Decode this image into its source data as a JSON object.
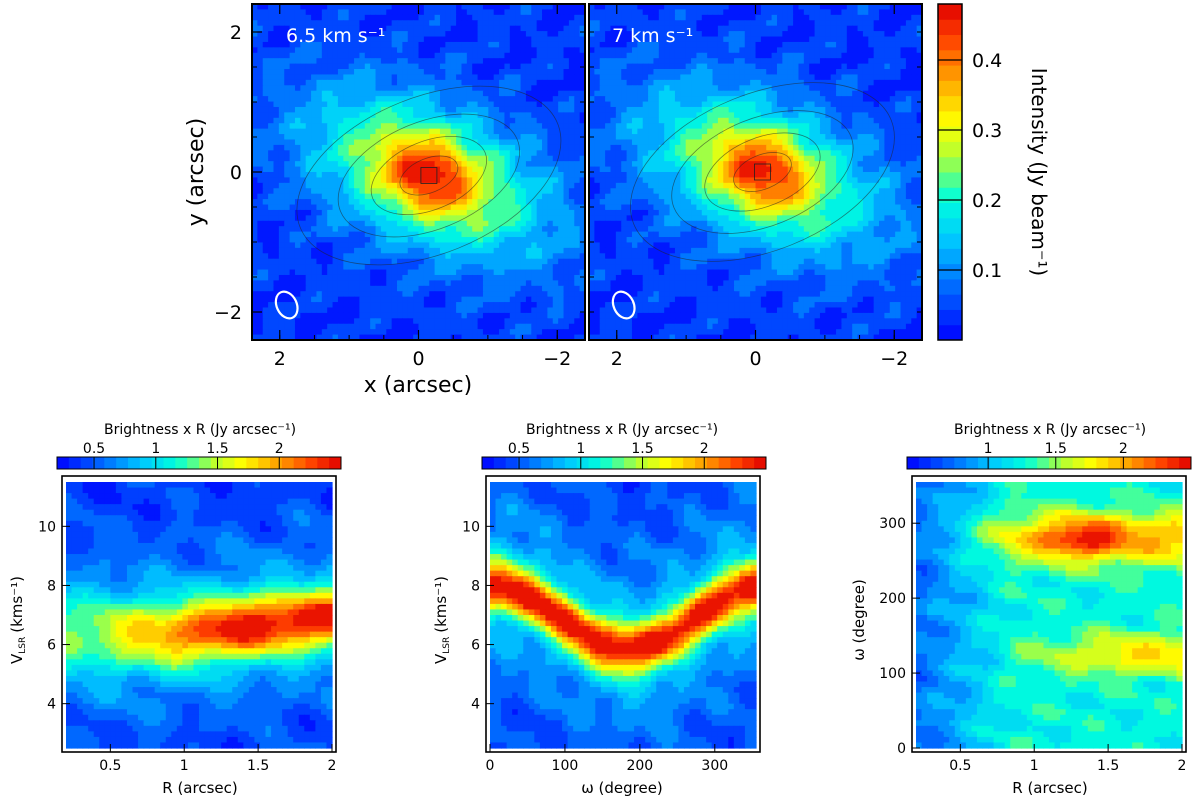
{
  "chart_data": [
    {
      "id": "map_6p5",
      "type": "heatmap",
      "subtype": "channel-map",
      "annotation": "6.5 km s⁻¹",
      "xlabel": "x (arcsec)",
      "ylabel": "y (arcsec)",
      "xlim": [
        2.4,
        -2.4
      ],
      "ylim": [
        -2.4,
        2.4
      ],
      "xticks": [
        {
          "value": 2,
          "label": "2"
        },
        {
          "value": 0,
          "label": "0"
        },
        {
          "value": -2,
          "label": "−2"
        }
      ],
      "yticks": [
        {
          "value": -2,
          "label": "−2"
        },
        {
          "value": 0,
          "label": "0"
        },
        {
          "value": 2,
          "label": "2"
        }
      ],
      "peak": {
        "x": -0.15,
        "y": -0.05,
        "value": 0.47
      },
      "beam": {
        "x": 1.9,
        "y": -1.9
      }
    },
    {
      "id": "map_7",
      "type": "heatmap",
      "subtype": "channel-map",
      "annotation": "7 km s⁻¹",
      "xlim": [
        2.4,
        -2.4
      ],
      "ylim": [
        -2.4,
        2.4
      ],
      "xticks": [
        {
          "value": 2,
          "label": "2"
        },
        {
          "value": 0,
          "label": "0"
        },
        {
          "value": -2,
          "label": "−2"
        }
      ],
      "peak": {
        "x": -0.1,
        "y": 0.0,
        "value": 0.47
      },
      "beam": {
        "x": 1.9,
        "y": -1.9
      }
    },
    {
      "id": "colorbar_intensity",
      "type": "colorbar",
      "label": "Intensity (Jy beam⁻¹)",
      "range": [
        0,
        0.48
      ],
      "ticks": [
        {
          "value": 0.1,
          "label": "0.1"
        },
        {
          "value": 0.2,
          "label": "0.2"
        },
        {
          "value": 0.3,
          "label": "0.3"
        },
        {
          "value": 0.4,
          "label": "0.4"
        }
      ]
    },
    {
      "id": "pv_vR",
      "type": "heatmap",
      "xlabel": "R (arcsec)",
      "ylabel_main": "V",
      "ylabel_sub": "LSR",
      "ylabel_unit": "(kms⁻¹)",
      "xlim": [
        0.2,
        2.0
      ],
      "ylim": [
        2.5,
        11.5
      ],
      "xticks": [
        {
          "value": 0.5,
          "label": "0.5"
        },
        {
          "value": 1,
          "label": "1"
        },
        {
          "value": 1.5,
          "label": "1.5"
        },
        {
          "value": 2,
          "label": "2"
        }
      ],
      "yticks": [
        {
          "value": 4,
          "label": "4"
        },
        {
          "value": 6,
          "label": "6"
        },
        {
          "value": 8,
          "label": "8"
        },
        {
          "value": 10,
          "label": "10"
        }
      ],
      "colorbar": {
        "label": "Brightness x R (Jy arcsec⁻¹)",
        "range": [
          0.2,
          2.5
        ],
        "ticks": [
          {
            "value": 0.5,
            "label": "0.5"
          },
          {
            "value": 1,
            "label": "1"
          },
          {
            "value": 1.5,
            "label": "1.5"
          },
          {
            "value": 2,
            "label": "2"
          }
        ]
      },
      "ridge": [
        {
          "x": 0.5,
          "y": 6.4
        },
        {
          "x": 1.0,
          "y": 6.4
        },
        {
          "x": 1.4,
          "y": 6.7
        },
        {
          "x": 1.9,
          "y": 7.0
        }
      ],
      "peak_value": 2.4
    },
    {
      "id": "pv_vw",
      "type": "heatmap",
      "xlabel": "ω (degree)",
      "ylabel_main": "V",
      "ylabel_sub": "LSR",
      "ylabel_unit": "(kms⁻¹)",
      "xlim": [
        0,
        355
      ],
      "ylim": [
        2.5,
        11.5
      ],
      "xticks": [
        {
          "value": 0,
          "label": "0"
        },
        {
          "value": 100,
          "label": "100"
        },
        {
          "value": 200,
          "label": "200"
        },
        {
          "value": 300,
          "label": "300"
        }
      ],
      "yticks": [
        {
          "value": 4,
          "label": "4"
        },
        {
          "value": 6,
          "label": "6"
        },
        {
          "value": 8,
          "label": "8"
        },
        {
          "value": 10,
          "label": "10"
        }
      ],
      "colorbar": {
        "label": "Brightness x R (Jy arcsec⁻¹)",
        "range": [
          0.2,
          2.5
        ],
        "ticks": [
          {
            "value": 0.5,
            "label": "0.5"
          },
          {
            "value": 1,
            "label": "1"
          },
          {
            "value": 1.5,
            "label": "1.5"
          },
          {
            "value": 2,
            "label": "2"
          }
        ]
      },
      "ridge": [
        {
          "x": 0,
          "y": 8.0
        },
        {
          "x": 90,
          "y": 7.4
        },
        {
          "x": 180,
          "y": 5.9
        },
        {
          "x": 270,
          "y": 6.6
        },
        {
          "x": 350,
          "y": 7.8
        }
      ],
      "peak_value": 2.4
    },
    {
      "id": "pv_wR",
      "type": "heatmap",
      "xlabel": "R (arcsec)",
      "ylabel": "ω (degree)",
      "xlim": [
        0.2,
        2.0
      ],
      "ylim": [
        0,
        355
      ],
      "xticks": [
        {
          "value": 0.5,
          "label": "0.5"
        },
        {
          "value": 1,
          "label": "1"
        },
        {
          "value": 1.5,
          "label": "1.5"
        },
        {
          "value": 2,
          "label": "2"
        }
      ],
      "yticks": [
        {
          "value": 0,
          "label": "0"
        },
        {
          "value": 100,
          "label": "100"
        },
        {
          "value": 200,
          "label": "200"
        },
        {
          "value": 300,
          "label": "300"
        }
      ],
      "colorbar": {
        "label": "Brightness x R (Jy arcsec⁻¹)",
        "range": [
          0.4,
          2.5
        ],
        "ticks": [
          {
            "value": 1,
            "label": "1"
          },
          {
            "value": 1.5,
            "label": "1.5"
          },
          {
            "value": 2,
            "label": "2"
          }
        ]
      },
      "blobs": [
        {
          "x": 1.35,
          "y": 280,
          "value": 2.35
        },
        {
          "x": 1.7,
          "y": 125,
          "value": 2.0
        }
      ],
      "peak_value": 2.4
    }
  ]
}
